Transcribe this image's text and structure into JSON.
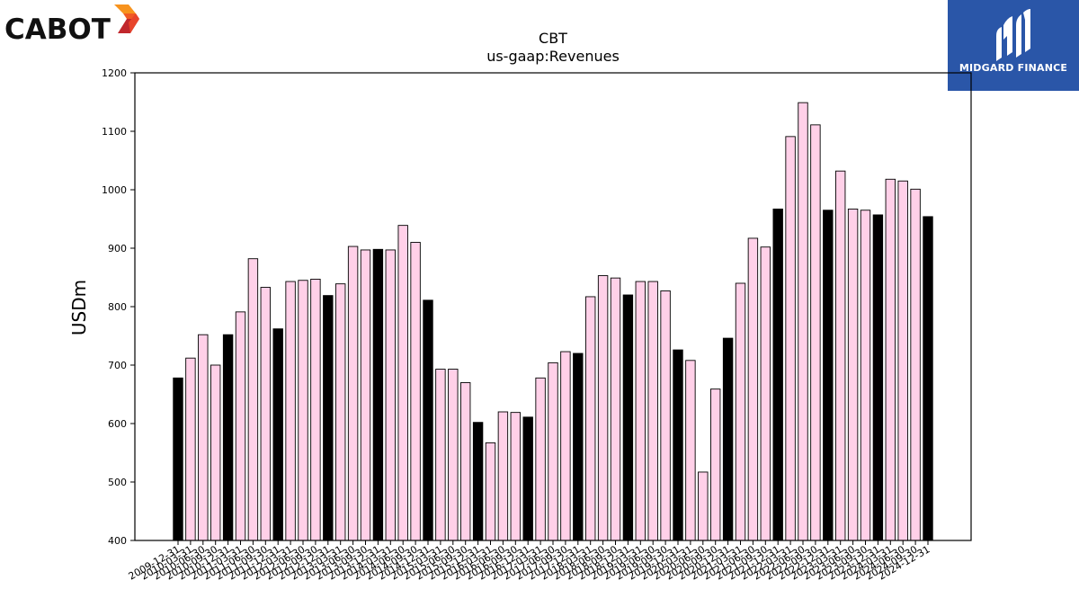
{
  "logos": {
    "left": "CABOT",
    "right": "MIDGARD FINANCE"
  },
  "colors": {
    "highlight_bar": "#000000",
    "normal_bar": "#ffd0e8",
    "bar_edge": "#000000",
    "midgard_bg": "#2a56a8",
    "cabot_orange": "#f15a24",
    "cabot_red": "#c1272d"
  },
  "chart_data": {
    "type": "bar",
    "title": "CBT",
    "subtitle": "us-gaap:Revenues",
    "xlabel": "",
    "ylabel": "USDm",
    "ylim": [
      400,
      1200
    ],
    "yticks": [
      400,
      500,
      600,
      700,
      800,
      900,
      1000,
      1100,
      1200
    ],
    "grid": false,
    "legend": "none",
    "categories": [
      "2009-12-31",
      "2010-03-31",
      "2010-06-30",
      "2010-09-30",
      "2010-12-31",
      "2011-03-31",
      "2011-06-30",
      "2011-09-30",
      "2011-12-31",
      "2012-03-31",
      "2012-06-30",
      "2012-09-30",
      "2012-12-31",
      "2013-03-31",
      "2013-06-30",
      "2013-09-30",
      "2013-12-31",
      "2014-03-31",
      "2014-06-30",
      "2014-09-30",
      "2014-12-31",
      "2015-03-31",
      "2015-06-30",
      "2015-09-30",
      "2015-12-31",
      "2016-03-31",
      "2016-06-30",
      "2016-09-30",
      "2016-12-31",
      "2017-03-31",
      "2017-06-30",
      "2017-09-30",
      "2017-12-31",
      "2018-03-31",
      "2018-06-30",
      "2018-09-30",
      "2018-12-31",
      "2019-03-31",
      "2019-06-30",
      "2019-09-30",
      "2019-12-31",
      "2020-03-31",
      "2020-06-30",
      "2020-09-30",
      "2020-12-31",
      "2021-03-31",
      "2021-06-30",
      "2021-09-30",
      "2021-12-31",
      "2022-03-31",
      "2022-06-30",
      "2022-09-30",
      "2022-12-31",
      "2023-03-31",
      "2023-06-30",
      "2023-09-30",
      "2023-12-31",
      "2024-03-31",
      "2024-06-30",
      "2024-09-30",
      "2024-12-31"
    ],
    "values": [
      678,
      712,
      752,
      700,
      752,
      791,
      882,
      833,
      762,
      843,
      845,
      847,
      819,
      839,
      903,
      897,
      898,
      897,
      939,
      910,
      811,
      693,
      693,
      670,
      602,
      567,
      620,
      619,
      611,
      678,
      704,
      723,
      720,
      817,
      853,
      849,
      820,
      843,
      843,
      827,
      726,
      708,
      517,
      659,
      746,
      840,
      917,
      902,
      967,
      1091,
      1149,
      1111,
      965,
      1032,
      967,
      965,
      957,
      1018,
      1015,
      1001,
      954
    ],
    "highlighted": [
      true,
      false,
      false,
      false,
      true,
      false,
      false,
      false,
      true,
      false,
      false,
      false,
      true,
      false,
      false,
      false,
      true,
      false,
      false,
      false,
      true,
      false,
      false,
      false,
      true,
      false,
      false,
      false,
      true,
      false,
      false,
      false,
      true,
      false,
      false,
      false,
      true,
      false,
      false,
      false,
      true,
      false,
      false,
      false,
      true,
      false,
      false,
      false,
      true,
      false,
      false,
      false,
      true,
      false,
      false,
      false,
      true,
      false,
      false,
      false,
      true
    ]
  }
}
